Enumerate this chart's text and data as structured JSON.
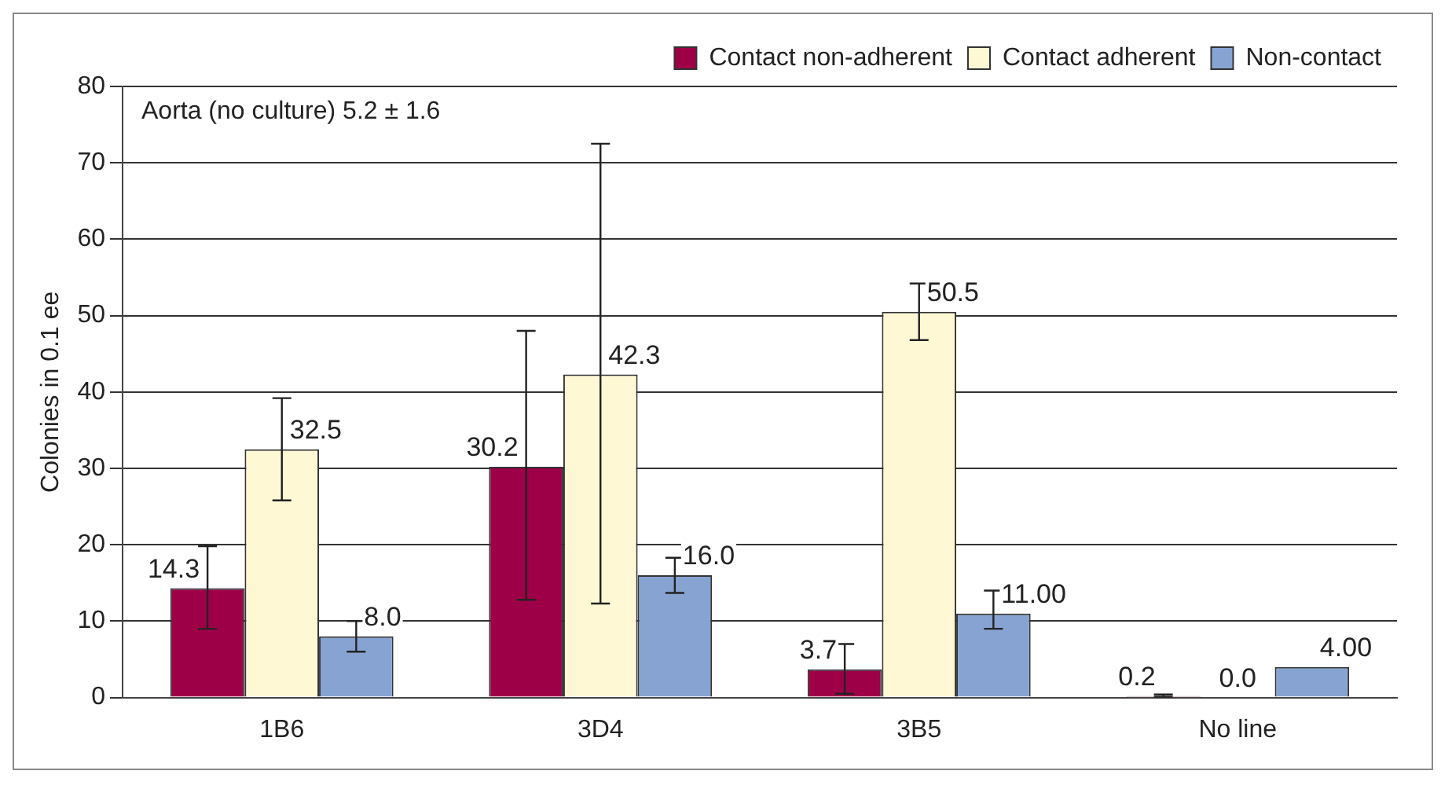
{
  "chart_data": {
    "type": "bar",
    "ylabel": "Colonies in 0.1 ee",
    "categories": [
      "1B6",
      "3D4",
      "3B5",
      "No line"
    ],
    "series": [
      {
        "name": "Contact non-adherent",
        "color": "#9e0048",
        "values": [
          14.3,
          30.2,
          3.7,
          0.2
        ],
        "value_labels": [
          "14.3",
          "30.2",
          "3.7",
          "0.2"
        ],
        "errors": [
          [
            9.0,
            19.8
          ],
          [
            12.8,
            48.0
          ],
          [
            0.5,
            7.0
          ],
          [
            0.1,
            0.4
          ]
        ]
      },
      {
        "name": "Contact adherent",
        "color": "#fff8d5",
        "values": [
          32.5,
          42.3,
          50.5,
          0.0
        ],
        "value_labels": [
          "32.5",
          "42.3",
          "50.5",
          "0.0"
        ],
        "errors": [
          [
            25.8,
            39.2
          ],
          [
            12.3,
            72.5
          ],
          [
            46.8,
            54.2
          ],
          null
        ]
      },
      {
        "name": "Non-contact",
        "color": "#86a3d2",
        "values": [
          8.0,
          16.0,
          11.0,
          4.0
        ],
        "value_labels": [
          "8.0",
          "16.0",
          "11.00",
          "4.00"
        ],
        "errors": [
          [
            6.0,
            10.0
          ],
          [
            13.7,
            18.3
          ],
          [
            9.0,
            14.0
          ],
          null
        ]
      }
    ],
    "ylim": [
      0,
      80
    ],
    "yticks": [
      0,
      10,
      20,
      30,
      40,
      50,
      60,
      70,
      80
    ],
    "grid": "y",
    "legend": "top right",
    "annotations": [
      "Aorta (no culture) 5.2 ± 1.6"
    ]
  }
}
